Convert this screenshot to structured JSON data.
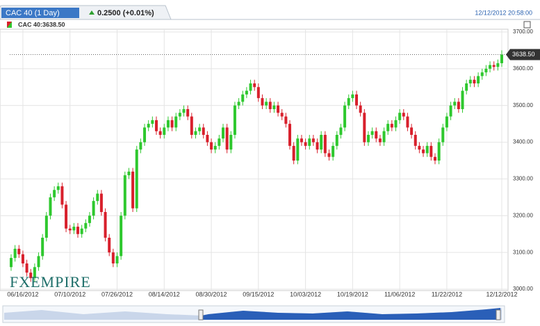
{
  "chart_data": {
    "type": "candlestick",
    "title": "CAC 40 (1 Day)",
    "change": "0.2500 (+0.01%)",
    "timestamp": "12/12/2012 20:58:00",
    "watermark": "FXEMPIRE",
    "categories": [
      null,
      null,
      null,
      "06/16/2012",
      null,
      null,
      null,
      null,
      null,
      null,
      null,
      null,
      null,
      null,
      null,
      "07/10/2012",
      null,
      null,
      null,
      null,
      null,
      null,
      null,
      null,
      null,
      null,
      null,
      "07/26/2012",
      null,
      null,
      null,
      null,
      null,
      null,
      null,
      null,
      null,
      null,
      null,
      "08/14/2012",
      null,
      null,
      null,
      null,
      null,
      null,
      null,
      null,
      null,
      null,
      null,
      "08/30/2012",
      null,
      null,
      null,
      null,
      null,
      null,
      null,
      null,
      null,
      null,
      null,
      "09/15/2012",
      null,
      null,
      null,
      null,
      null,
      null,
      null,
      null,
      null,
      null,
      null,
      "10/03/2012",
      null,
      null,
      null,
      null,
      null,
      null,
      null,
      null,
      null,
      null,
      null,
      "10/19/2012",
      null,
      null,
      null,
      null,
      null,
      null,
      null,
      null,
      null,
      null,
      null,
      "11/06/2012",
      null,
      null,
      null,
      null,
      null,
      null,
      null,
      null,
      null,
      null,
      null,
      "11/22/2012",
      null,
      null,
      null,
      null,
      null,
      null,
      null,
      null,
      null,
      null,
      null,
      null,
      null,
      "12/12/2012"
    ],
    "series": [
      {
        "name": "CAC 40:3638.50",
        "up_color": "#2ec82e",
        "down_color": "#d8202c",
        "open": [
          3060,
          3085,
          3110,
          3095,
          3070,
          3045,
          3030,
          3060,
          3090,
          3140,
          3200,
          3250,
          3270,
          3280,
          3230,
          3165,
          3160,
          3170,
          3150,
          3165,
          3180,
          3200,
          3240,
          3260,
          3210,
          3140,
          3100,
          3070,
          3090,
          3200,
          3310,
          3320,
          3220,
          3380,
          3400,
          3440,
          3450,
          3460,
          3430,
          3420,
          3440,
          3460,
          3440,
          3470,
          3480,
          3490,
          3470,
          3420,
          3430,
          3440,
          3420,
          3400,
          3380,
          3390,
          3410,
          3440,
          3380,
          3420,
          3500,
          3510,
          3530,
          3540,
          3560,
          3550,
          3520,
          3500,
          3510,
          3490,
          3500,
          3480,
          3470,
          3450,
          3390,
          3350,
          3410,
          3400,
          3390,
          3410,
          3400,
          3380,
          3420,
          3370,
          3360,
          3390,
          3420,
          3440,
          3500,
          3520,
          3530,
          3500,
          3480,
          3400,
          3420,
          3430,
          3410,
          3400,
          3430,
          3450,
          3440,
          3460,
          3480,
          3470,
          3440,
          3420,
          3390,
          3380,
          3370,
          3390,
          3360,
          3350,
          3400,
          3440,
          3470,
          3500,
          3510,
          3490,
          3540,
          3560,
          3570,
          3560,
          3580,
          3590,
          3600,
          3610,
          3605,
          3615
        ],
        "high": [
          3095,
          3120,
          3120,
          3105,
          3080,
          3055,
          3070,
          3100,
          3150,
          3210,
          3260,
          3280,
          3290,
          3290,
          3240,
          3175,
          3180,
          3180,
          3175,
          3190,
          3210,
          3250,
          3270,
          3270,
          3220,
          3150,
          3110,
          3100,
          3210,
          3320,
          3330,
          3330,
          3390,
          3410,
          3450,
          3460,
          3470,
          3470,
          3440,
          3450,
          3470,
          3470,
          3480,
          3490,
          3500,
          3500,
          3480,
          3440,
          3450,
          3450,
          3430,
          3410,
          3400,
          3420,
          3450,
          3450,
          3430,
          3510,
          3520,
          3540,
          3550,
          3570,
          3570,
          3560,
          3530,
          3520,
          3520,
          3510,
          3510,
          3490,
          3480,
          3460,
          3400,
          3420,
          3420,
          3410,
          3420,
          3420,
          3410,
          3430,
          3430,
          3380,
          3400,
          3430,
          3450,
          3510,
          3530,
          3540,
          3540,
          3510,
          3490,
          3430,
          3440,
          3440,
          3420,
          3440,
          3460,
          3460,
          3470,
          3490,
          3490,
          3480,
          3450,
          3430,
          3400,
          3390,
          3400,
          3400,
          3370,
          3410,
          3450,
          3480,
          3510,
          3520,
          3520,
          3550,
          3570,
          3580,
          3580,
          3590,
          3600,
          3610,
          3620,
          3620,
          3625,
          3650
        ],
        "low": [
          3050,
          3075,
          3085,
          3060,
          3035,
          3020,
          3020,
          3050,
          3080,
          3130,
          3190,
          3240,
          3260,
          3220,
          3155,
          3150,
          3150,
          3140,
          3140,
          3155,
          3170,
          3190,
          3230,
          3200,
          3130,
          3090,
          3060,
          3060,
          3080,
          3190,
          3300,
          3210,
          3210,
          3370,
          3390,
          3430,
          3440,
          3420,
          3410,
          3410,
          3430,
          3430,
          3430,
          3460,
          3470,
          3460,
          3410,
          3410,
          3420,
          3410,
          3390,
          3370,
          3370,
          3380,
          3400,
          3370,
          3370,
          3410,
          3490,
          3500,
          3520,
          3530,
          3540,
          3510,
          3490,
          3490,
          3480,
          3480,
          3470,
          3460,
          3440,
          3380,
          3340,
          3340,
          3390,
          3380,
          3380,
          3390,
          3370,
          3370,
          3360,
          3350,
          3350,
          3380,
          3410,
          3430,
          3490,
          3510,
          3490,
          3470,
          3390,
          3390,
          3410,
          3400,
          3390,
          3390,
          3420,
          3430,
          3430,
          3450,
          3460,
          3430,
          3410,
          3380,
          3370,
          3360,
          3360,
          3350,
          3340,
          3340,
          3390,
          3430,
          3460,
          3490,
          3480,
          3480,
          3530,
          3550,
          3550,
          3550,
          3570,
          3580,
          3590,
          3595,
          3595,
          3605
        ],
        "close": [
          3085,
          3110,
          3095,
          3070,
          3045,
          3030,
          3060,
          3090,
          3140,
          3200,
          3250,
          3270,
          3280,
          3230,
          3165,
          3160,
          3170,
          3150,
          3165,
          3180,
          3200,
          3240,
          3260,
          3210,
          3140,
          3100,
          3070,
          3090,
          3200,
          3310,
          3320,
          3220,
          3380,
          3400,
          3440,
          3450,
          3460,
          3430,
          3420,
          3440,
          3460,
          3440,
          3470,
          3480,
          3490,
          3470,
          3420,
          3430,
          3440,
          3420,
          3400,
          3380,
          3390,
          3410,
          3440,
          3380,
          3420,
          3500,
          3510,
          3530,
          3540,
          3560,
          3550,
          3520,
          3500,
          3510,
          3490,
          3500,
          3480,
          3470,
          3450,
          3390,
          3350,
          3410,
          3400,
          3390,
          3410,
          3400,
          3380,
          3420,
          3370,
          3360,
          3390,
          3420,
          3440,
          3500,
          3520,
          3530,
          3500,
          3480,
          3400,
          3420,
          3430,
          3410,
          3400,
          3430,
          3450,
          3440,
          3460,
          3480,
          3470,
          3440,
          3420,
          3390,
          3380,
          3370,
          3390,
          3360,
          3350,
          3400,
          3440,
          3470,
          3500,
          3510,
          3490,
          3540,
          3560,
          3570,
          3560,
          3580,
          3590,
          3600,
          3610,
          3605,
          3615,
          3638.5
        ]
      }
    ],
    "last_price": {
      "value": 3638.5,
      "label": "3638.50"
    },
    "ylim": [
      3000,
      3700
    ],
    "yticks": [
      {
        "value": 3000,
        "label": "3000.00"
      },
      {
        "value": 3100,
        "label": "3100.00"
      },
      {
        "value": 3200,
        "label": "3200.00"
      },
      {
        "value": 3300,
        "label": "3300.00"
      },
      {
        "value": 3400,
        "label": "3400.00"
      },
      {
        "value": 3500,
        "label": "3500.00"
      },
      {
        "value": 3600,
        "label": "3600.00"
      },
      {
        "value": 3700,
        "label": "3700.00"
      }
    ],
    "grid": true
  }
}
